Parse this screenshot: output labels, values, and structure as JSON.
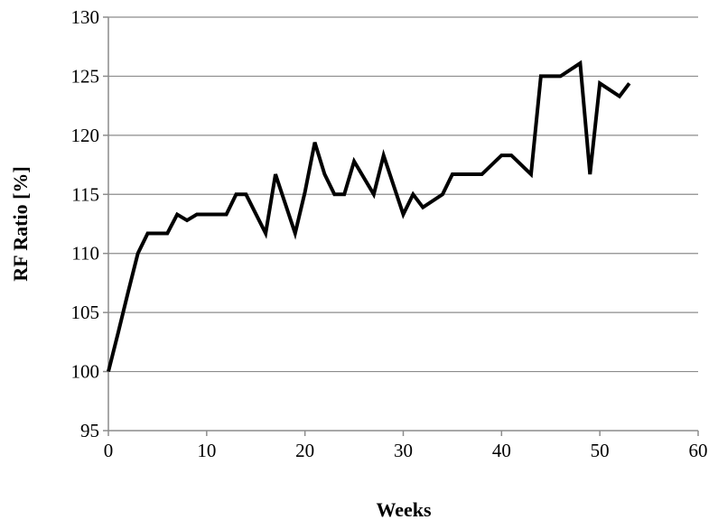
{
  "chart_data": {
    "type": "line",
    "xlabel": "Weeks",
    "ylabel": "RF Ratio [%]",
    "xlim": [
      0,
      60
    ],
    "ylim": [
      95,
      130
    ],
    "xticks": [
      0,
      10,
      20,
      30,
      40,
      50,
      60
    ],
    "yticks": [
      95,
      100,
      105,
      110,
      115,
      120,
      125,
      130
    ],
    "grid": "horizontal",
    "legend": "none",
    "series": [
      {
        "color": "#000000",
        "x": [
          0,
          1,
          2,
          3,
          4,
          5,
          6,
          7,
          8,
          9,
          10,
          11,
          12,
          13,
          14,
          16,
          17,
          18,
          19,
          20,
          21,
          22,
          23,
          24,
          25,
          26,
          27,
          28,
          29,
          30,
          31,
          32,
          34,
          35,
          36,
          38,
          40,
          41,
          43,
          44,
          46,
          48,
          49,
          50,
          52,
          53
        ],
        "y": [
          100,
          103.3,
          106.7,
          110,
          111.7,
          111.7,
          111.7,
          113.3,
          112.8,
          113.3,
          113.3,
          113.3,
          113.3,
          115,
          115,
          111.7,
          116.7,
          114.2,
          111.7,
          115.2,
          119.4,
          116.7,
          115,
          115,
          117.8,
          116.4,
          115,
          118.3,
          115.8,
          113.3,
          115,
          113.9,
          115,
          116.7,
          116.7,
          116.7,
          118.3,
          118.3,
          116.7,
          125,
          125,
          126.1,
          116.7,
          124.4,
          123.3,
          124.4
        ]
      }
    ]
  }
}
